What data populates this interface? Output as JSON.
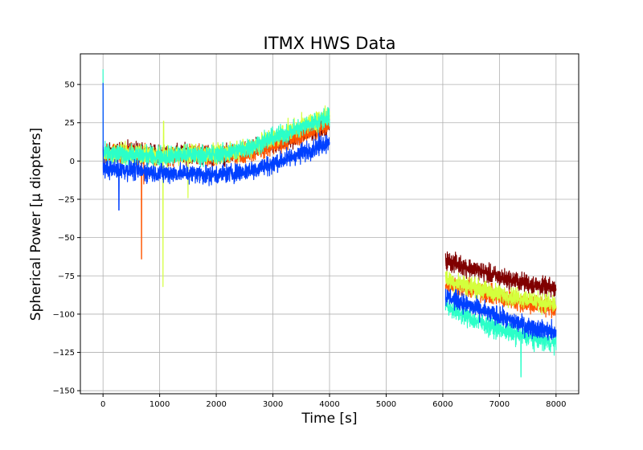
{
  "chart_data": {
    "type": "line",
    "title": "ITMX HWS Data",
    "xlabel": "Time [s]",
    "ylabel": "Spherical Power [μ diopters]",
    "xlim": [
      -400,
      8400
    ],
    "ylim": [
      -152,
      70
    ],
    "xticks": [
      0,
      1000,
      2000,
      3000,
      4000,
      5000,
      6000,
      7000,
      8000
    ],
    "yticks": [
      50,
      25,
      0,
      -25,
      -50,
      -75,
      -100,
      -125,
      -150
    ],
    "grid": true,
    "legend": "none",
    "noise_amplitude": 6,
    "series": [
      {
        "color": "#800000",
        "segments": [
          [
            [
              0,
              5
            ],
            [
              500,
              6
            ],
            [
              1000,
              4
            ],
            [
              1500,
              5
            ],
            [
              2000,
              3
            ],
            [
              2500,
              6
            ],
            [
              3000,
              11
            ],
            [
              3500,
              17
            ],
            [
              4000,
              24
            ]
          ],
          [
            [
              6050,
              -65
            ],
            [
              6500,
              -70
            ],
            [
              7000,
              -76
            ],
            [
              7500,
              -80
            ],
            [
              8000,
              -84
            ]
          ]
        ],
        "spikes": []
      },
      {
        "color": "#ff5500",
        "segments": [
          [
            [
              0,
              4
            ],
            [
              500,
              5
            ],
            [
              1000,
              3
            ],
            [
              1500,
              4
            ],
            [
              2000,
              3
            ],
            [
              2500,
              5
            ],
            [
              3000,
              10
            ],
            [
              3500,
              17
            ],
            [
              4000,
              24
            ]
          ],
          [
            [
              6050,
              -79
            ],
            [
              6500,
              -84
            ],
            [
              7000,
              -89
            ],
            [
              7500,
              -93
            ],
            [
              8000,
              -96
            ]
          ]
        ],
        "spikes": [
          [
            680,
            -64
          ],
          [
            720,
            -15
          ]
        ]
      },
      {
        "color": "#d4ff3c",
        "segments": [
          [
            [
              0,
              4
            ],
            [
              500,
              5
            ],
            [
              1000,
              3
            ],
            [
              1500,
              5
            ],
            [
              2000,
              4
            ],
            [
              2500,
              8
            ],
            [
              3000,
              15
            ],
            [
              3500,
              23
            ],
            [
              4000,
              30
            ]
          ],
          [
            [
              6050,
              -77
            ],
            [
              6500,
              -82
            ],
            [
              7000,
              -87
            ],
            [
              7500,
              -90
            ],
            [
              8000,
              -94
            ]
          ]
        ],
        "spikes": [
          [
            1060,
            -82
          ],
          [
            1070,
            26
          ],
          [
            1500,
            -24
          ]
        ]
      },
      {
        "color": "#2bffc8",
        "segments": [
          [
            [
              0,
              5
            ],
            [
              500,
              4
            ],
            [
              1000,
              3
            ],
            [
              1500,
              4
            ],
            [
              2000,
              4
            ],
            [
              2500,
              8
            ],
            [
              3000,
              15
            ],
            [
              3500,
              22
            ],
            [
              4000,
              29
            ]
          ],
          [
            [
              6050,
              -94
            ],
            [
              6500,
              -103
            ],
            [
              7000,
              -110
            ],
            [
              7500,
              -115
            ],
            [
              8000,
              -119
            ]
          ]
        ],
        "spikes": [
          [
            0,
            60
          ],
          [
            7380,
            -141
          ]
        ]
      },
      {
        "color": "#0040ff",
        "segments": [
          [
            [
              0,
              -5
            ],
            [
              500,
              -6
            ],
            [
              1000,
              -8
            ],
            [
              1500,
              -8
            ],
            [
              2000,
              -9
            ],
            [
              2500,
              -7
            ],
            [
              3000,
              -2
            ],
            [
              3500,
              5
            ],
            [
              4000,
              13
            ]
          ],
          [
            [
              6050,
              -88
            ],
            [
              6500,
              -95
            ],
            [
              7000,
              -102
            ],
            [
              7500,
              -108
            ],
            [
              8000,
              -112
            ]
          ]
        ],
        "spikes": [
          [
            0,
            51
          ],
          [
            280,
            -32
          ]
        ]
      }
    ]
  }
}
